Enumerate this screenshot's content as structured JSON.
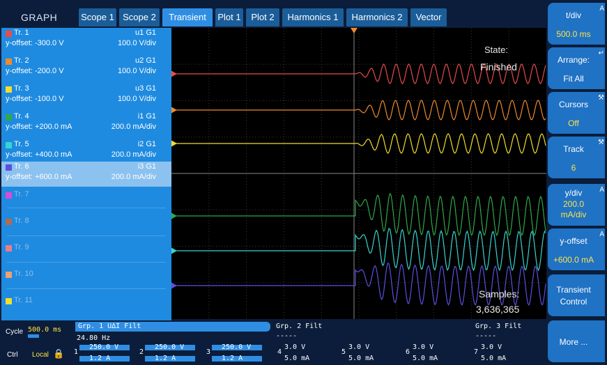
{
  "header": {
    "app_label": "GRAPH"
  },
  "tabs": [
    "Scope 1",
    "Scope 2",
    "Transient",
    "Plot 1",
    "Plot 2",
    "Harmonics 1",
    "Harmonics 2",
    "Vector"
  ],
  "traces": [
    {
      "name": "Tr. 1",
      "signal": "u1 G1",
      "yoffset": "y-offset: -300.0 V",
      "scale": "100.0 V/div",
      "color": "#e84b4b"
    },
    {
      "name": "Tr. 2",
      "signal": "u2 G1",
      "yoffset": "y-offset: -200.0 V",
      "scale": "100.0 V/div",
      "color": "#f08a2a"
    },
    {
      "name": "Tr. 3",
      "signal": "u3 G1",
      "yoffset": "y-offset: -100.0 V",
      "scale": "100.0 V/div",
      "color": "#f4dd2c"
    },
    {
      "name": "Tr. 4",
      "signal": "i1 G1",
      "yoffset": "y-offset: +200.0 mA",
      "scale": "200.0 mA/div",
      "color": "#2fa84a"
    },
    {
      "name": "Tr. 5",
      "signal": "i2 G1",
      "yoffset": "y-offset: +400.0 mA",
      "scale": "200.0 mA/div",
      "color": "#36d6d0"
    },
    {
      "name": "Tr. 6",
      "signal": "i3 G1",
      "yoffset": "y-offset: +600.0 mA",
      "scale": "200.0 mA/div",
      "color": "#5b4fe0"
    },
    {
      "name": "Tr. 7",
      "color": "#d84bd6"
    },
    {
      "name": "Tr. 8",
      "color": "#b56a4a"
    },
    {
      "name": "Tr. 9",
      "color": "#f07a8a"
    },
    {
      "name": "Tr. 10",
      "color": "#f2a070"
    },
    {
      "name": "Tr. 11",
      "color": "#f4dd2c"
    }
  ],
  "plot": {
    "state_label": "State:",
    "state_value": "Finished",
    "samples_label": "Samples:",
    "samples_value": "3,636,365"
  },
  "softkeys": [
    {
      "label": "t/div",
      "value": "500.0 ms",
      "icon": "A"
    },
    {
      "label": "Arrange:",
      "value": "Fit All",
      "icon": "↵"
    },
    {
      "label": "Cursors",
      "value": "Off",
      "icon": "⚒"
    },
    {
      "label": "Track",
      "value": "6",
      "icon": "⚒"
    },
    {
      "label": "y/div",
      "value": "200.0\nmA/div",
      "icon": "A"
    },
    {
      "label": "y-offset",
      "value": "+600.0 mA",
      "icon": "A"
    },
    {
      "label": "Transient\nControl",
      "value": ""
    },
    {
      "label": "More ...",
      "value": ""
    }
  ],
  "bottom": {
    "cycle_label": "Cycle",
    "cycle_value": "500.0 ms",
    "ctrl_label": "Ctrl",
    "local_label": "Local",
    "grp1_label": "Grp. 1 U∆I Filt",
    "grp1_freq": "24.80  Hz",
    "grp2_label": "Grp. 2 Filt",
    "grp2_dashes": "-----",
    "grp3_label": "Grp. 3 Filt",
    "grp3_dashes": "-----",
    "channels": [
      {
        "n": "1",
        "top": "250.0 V",
        "bot": "1.2 A"
      },
      {
        "n": "2",
        "top": "250.0 V",
        "bot": "1.2 A"
      },
      {
        "n": "3",
        "top": "250.0 V",
        "bot": "1.2 A"
      },
      {
        "n": "4",
        "top": "3.0 V",
        "bot": "5.0 mA"
      },
      {
        "n": "5",
        "top": "3.0 V",
        "bot": "5.0 mA"
      },
      {
        "n": "6",
        "top": "3.0 V",
        "bot": "5.0 mA"
      },
      {
        "n": "7",
        "top": "3.0 V",
        "bot": "5.0 mA"
      }
    ]
  }
}
